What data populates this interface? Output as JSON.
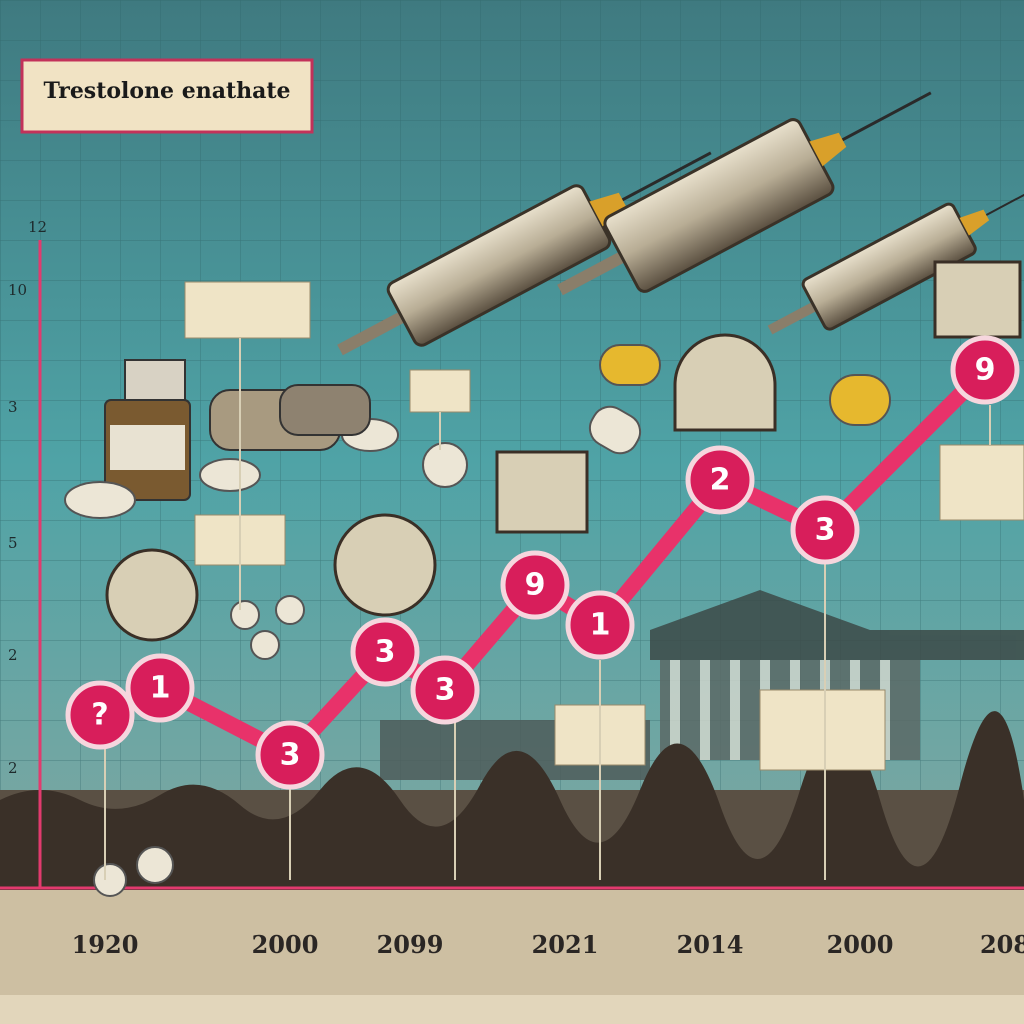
{
  "title": "Trestolone enathate",
  "y_labels": [
    "12",
    "10",
    "3",
    "5",
    "2",
    "2"
  ],
  "x_labels": [
    "1920",
    "2000",
    "2099",
    "2021",
    "2014",
    "2000",
    "208"
  ],
  "nodes": [
    {
      "label": "?"
    },
    {
      "label": "1"
    },
    {
      "label": "3"
    },
    {
      "label": "3"
    },
    {
      "label": "3"
    },
    {
      "label": "9"
    },
    {
      "label": "1"
    },
    {
      "label": "2"
    },
    {
      "label": "3"
    },
    {
      "label": "9"
    }
  ]
}
